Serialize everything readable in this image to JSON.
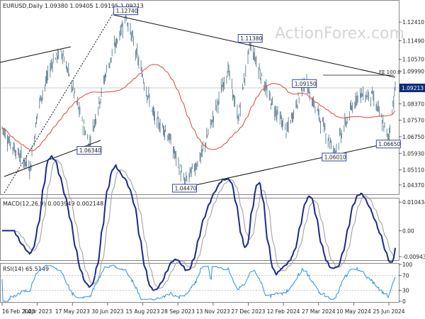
{
  "header": {
    "price_text": "EURUSD,Daily  1.09380 1.09405 1.09195 1.09213",
    "macd_text": "MACD(12,26,9) 0.003949 0.002148",
    "rsi_text": "RSI(14) 65.5149"
  },
  "watermark": "ActionForex.com",
  "colors": {
    "bar": "#4a7085",
    "ma": "#e0443a",
    "macd": "#1b2a8c",
    "signal": "#9a9a9a",
    "rsi": "#2f8fdd",
    "last_price_box": "#0a2f7a",
    "annotation_border": "#3346b0"
  },
  "chart_data": [
    {
      "type": "candlestick",
      "title": "EURUSD,Daily",
      "ohlc_last": {
        "open": "1.09380",
        "high": "1.09405",
        "low": "1.09195",
        "close": "1.09213"
      },
      "last_price": "1.09213",
      "ylim": [
        1.0405,
        1.1315
      ],
      "y_ticks": [
        "1.12410",
        "1.11490",
        "1.10570",
        "1.09990",
        "1.08370",
        "1.07570",
        "1.06750",
        "1.05930",
        "1.05110",
        "1.04370"
      ],
      "x_ticks": [
        "16 Feb 2023",
        "3 Apr 2023",
        "17 May 2023",
        "30 Jun 2023",
        "15 Aug 2023",
        "28 Sep 2023",
        "13 Nov 2023",
        "27 Dec 2023",
        "12 Feb 2024",
        "27 Mar 2024",
        "10 May 2024",
        "25 Jun 2024"
      ],
      "pivots": [
        {
          "date": "2023-07-18",
          "value": 1.1274,
          "label": "1.12740"
        },
        {
          "date": "2023-12-28",
          "value": 1.1138,
          "label": "1.11380"
        },
        {
          "date": "2023-05-31",
          "value": 1.0634,
          "label": "1.06340"
        },
        {
          "date": "2023-10-03",
          "value": 1.0447,
          "label": "1.04470"
        },
        {
          "date": "2024-03-08",
          "value": 1.0915,
          "label": "1.09150"
        },
        {
          "date": "2024-04-16",
          "value": 1.0601,
          "label": "1.06010"
        },
        {
          "date": "2024-06-26",
          "value": 1.0665,
          "label": "1.06650"
        }
      ],
      "fib_label": "FE 100.0"
    },
    {
      "type": "line",
      "title": "MACD(12,26,9)",
      "values_last": {
        "macd": 0.003949,
        "signal": 0.002148
      },
      "y_ticks": [
        "0.010434",
        "0.00",
        "-0.009436"
      ],
      "ylim": [
        -0.0105,
        0.0115
      ]
    },
    {
      "type": "line",
      "title": "RSI(14)",
      "last": 65.5149,
      "y_ticks": [
        "100",
        "70",
        "30",
        "0"
      ],
      "ylim": [
        0,
        100
      ]
    }
  ]
}
